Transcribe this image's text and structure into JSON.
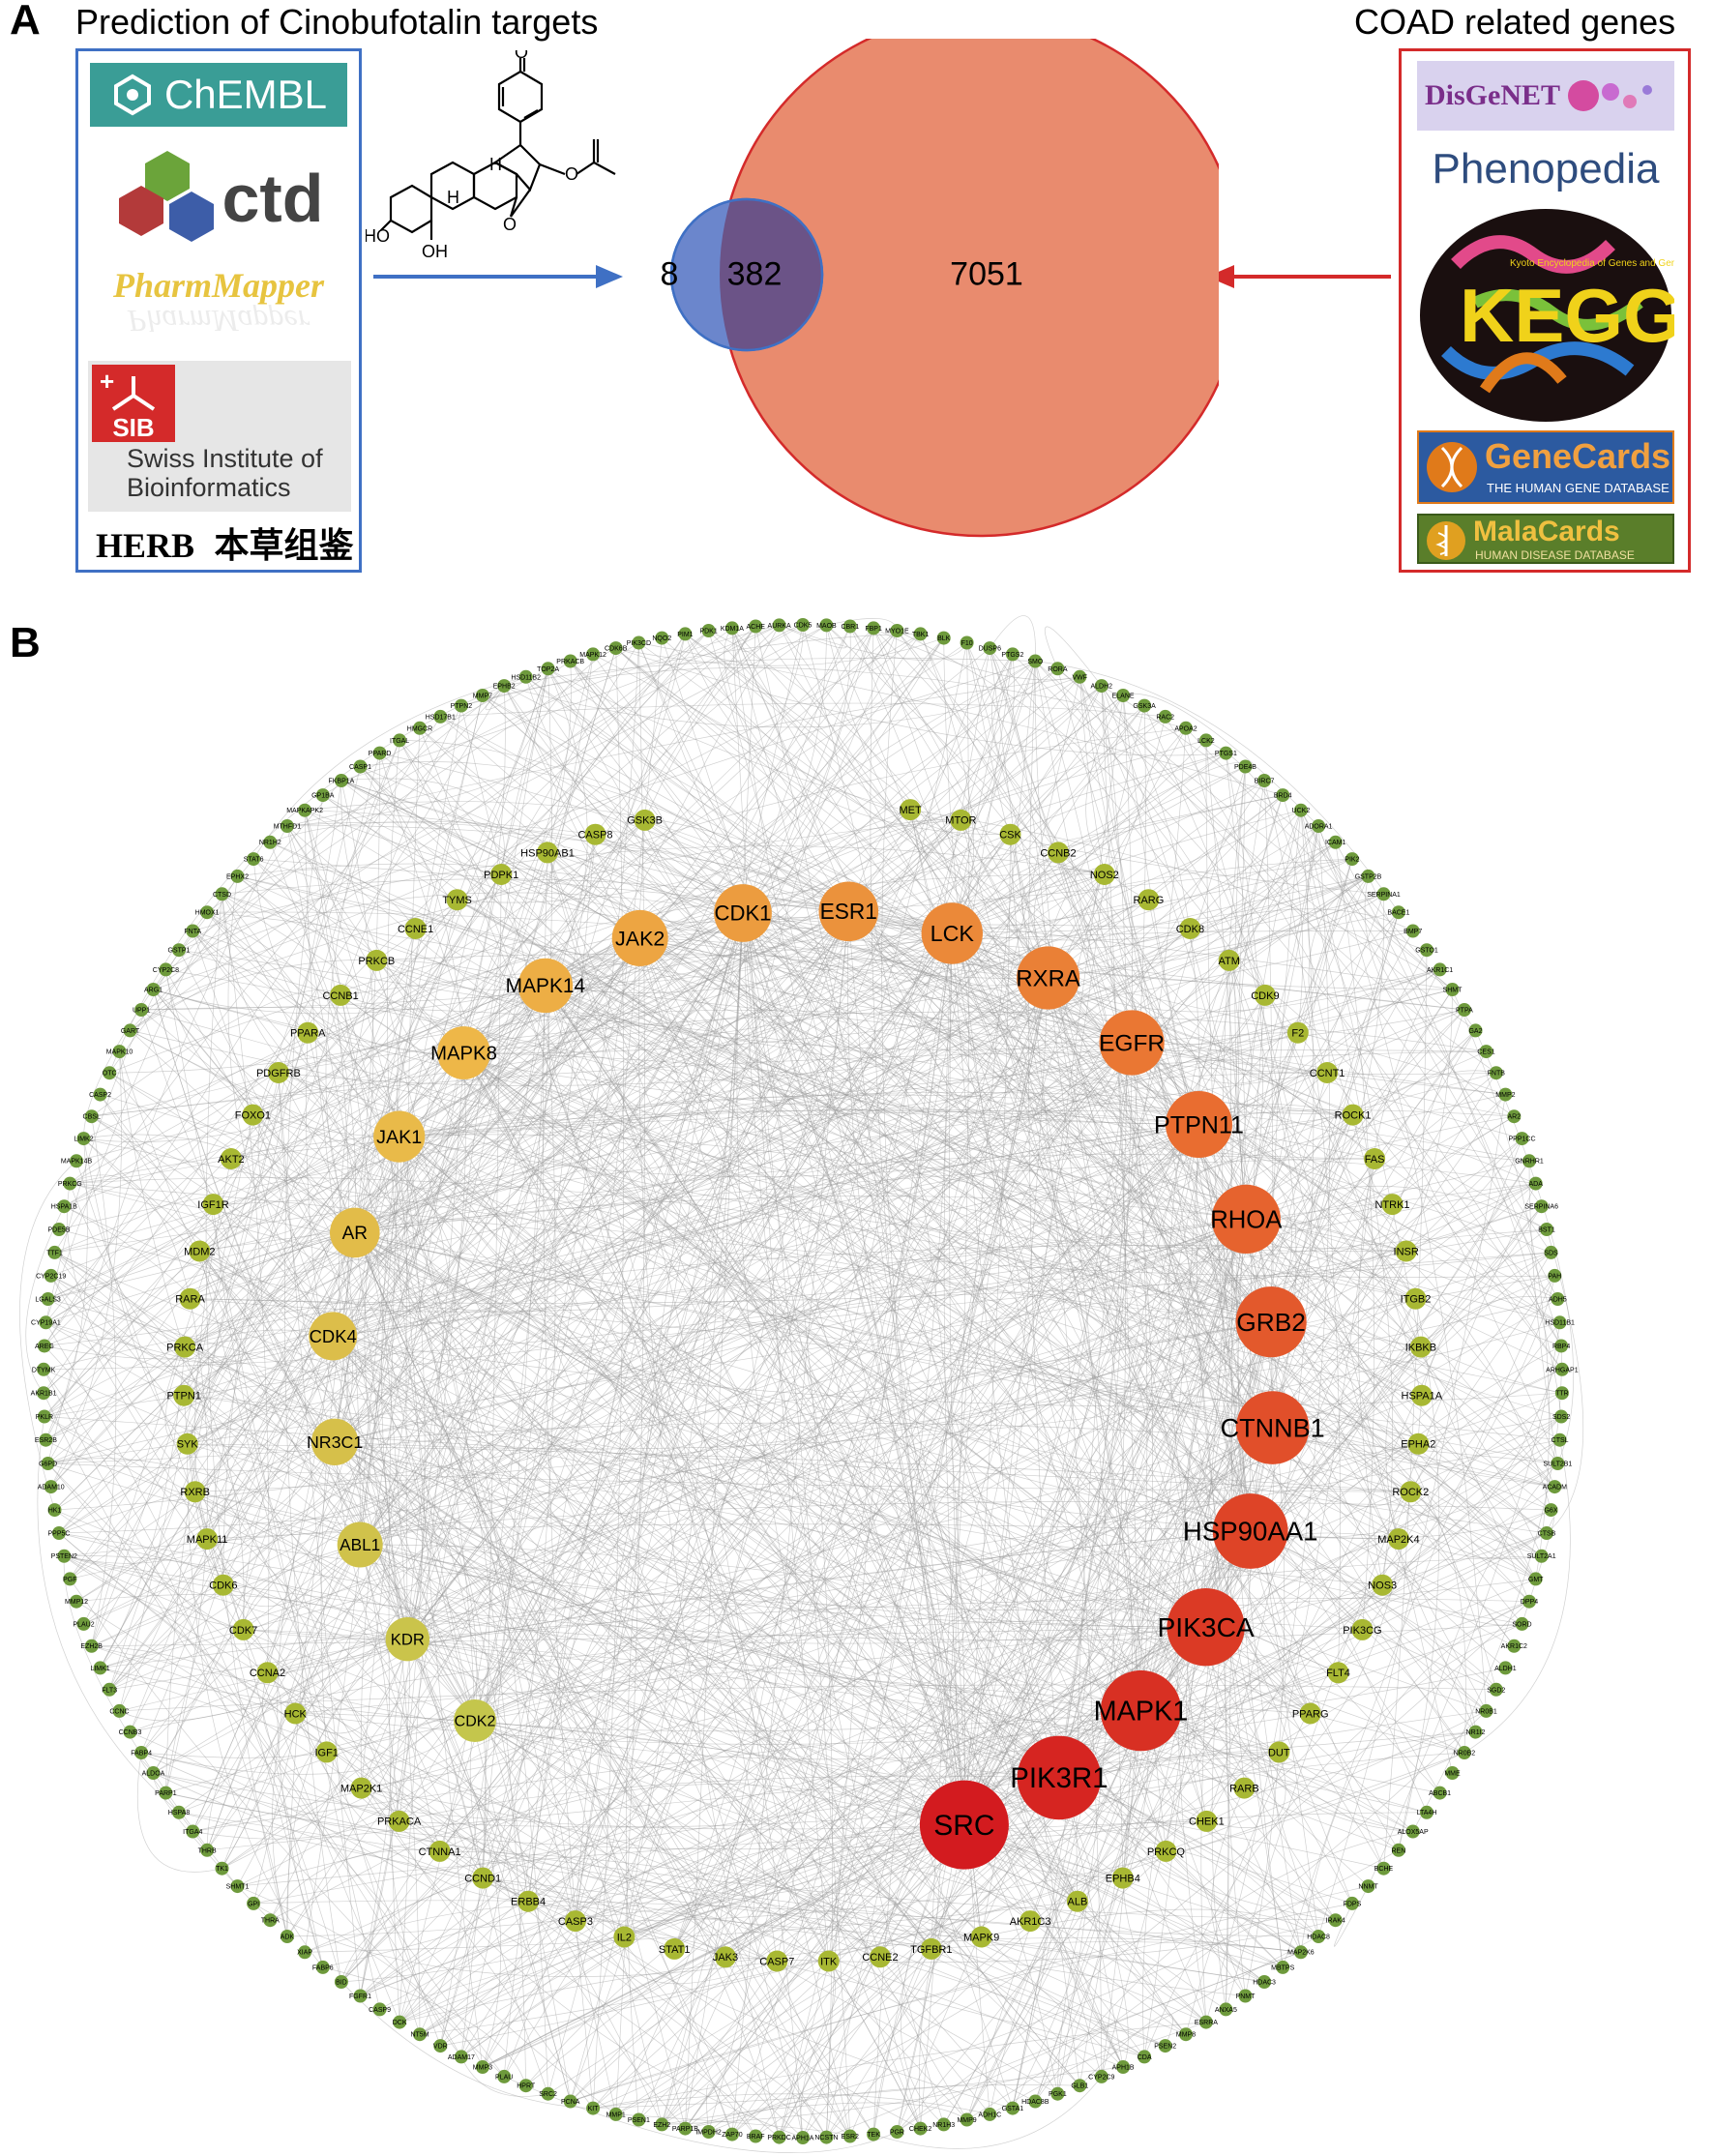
{
  "panel_a": {
    "letter": "A",
    "left_title": "Prediction of Cinobufotalin targets",
    "right_title": "COAD related genes",
    "left_logos": {
      "chembl": "ChEMBL",
      "ctd": "ctd",
      "pharmmapper": "PharmMapper",
      "sib_badge": "SIB",
      "sib_line1": "Swiss Institute of",
      "sib_line2": "Bioinformatics",
      "herb": "HERB",
      "herb_cn": "本草组鉴"
    },
    "right_logos": {
      "disgenet": "DisGeNET",
      "phenopedia": "Phenopedia",
      "kegg_letters": "KEGG",
      "kegg_tagline": "Kyoto Encyclopedia of Genes and Genomes",
      "genecards": "GeneCards",
      "genecards_tag": "THE HUMAN GENE DATABASE",
      "malacards": "MalaCards",
      "malacards_tag": "HUMAN DISEASE DATABASE"
    },
    "molecule_labels": {
      "h1": "H",
      "h2": "H",
      "ho": "HO",
      "oh": "OH",
      "o1": "O",
      "o2": "O",
      "o3": "O"
    },
    "venn": {
      "left_only": "8",
      "overlap": "382",
      "right_only": "7051",
      "left_color": "#6b86cc",
      "right_color": "#e98b6e",
      "overlap_color": "#6b5387"
    }
  },
  "panel_b": {
    "letter": "B",
    "inner_ring": [
      {
        "name": "SRC",
        "rank": 1
      },
      {
        "name": "PIK3R1",
        "rank": 2
      },
      {
        "name": "MAPK1",
        "rank": 3
      },
      {
        "name": "PIK3CA",
        "rank": 4
      },
      {
        "name": "HSP90AA1",
        "rank": 5
      },
      {
        "name": "CTNNB1",
        "rank": 6
      },
      {
        "name": "GRB2",
        "rank": 7
      },
      {
        "name": "RHOA",
        "rank": 8
      },
      {
        "name": "PTPN11",
        "rank": 9
      },
      {
        "name": "EGFR",
        "rank": 10
      },
      {
        "name": "RXRA",
        "rank": 11
      },
      {
        "name": "LCK",
        "rank": 12
      },
      {
        "name": "ESR1",
        "rank": 13
      },
      {
        "name": "CDK1",
        "rank": 14
      },
      {
        "name": "JAK2",
        "rank": 15
      },
      {
        "name": "MAPK14",
        "rank": 16
      },
      {
        "name": "MAPK8",
        "rank": 17
      },
      {
        "name": "JAK1",
        "rank": 18
      },
      {
        "name": "AR",
        "rank": 19
      },
      {
        "name": "CDK4",
        "rank": 20
      },
      {
        "name": "NR3C1",
        "rank": 21
      },
      {
        "name": "ABL1",
        "rank": 22
      },
      {
        "name": "KDR",
        "rank": 23
      },
      {
        "name": "CDK2",
        "rank": 24
      }
    ],
    "middle_ring": [
      "MET",
      "MTOR",
      "CSK",
      "CCNB2",
      "NOS2",
      "RARG",
      "CDK8",
      "ATM",
      "CDK9",
      "F2",
      "CCNT1",
      "ROCK1",
      "FAS",
      "NTRK1",
      "INSR",
      "ITGB2",
      "IKBKB",
      "HSPA1A",
      "EPHA2",
      "ROCK2",
      "MAP2K4",
      "NOS3",
      "PIK3CG",
      "FLT4",
      "PPARG",
      "DUT",
      "RARB",
      "CHEK1",
      "PRKCQ",
      "EPHB4",
      "ALB",
      "AKR1C3",
      "MAPK9",
      "TGFBR1",
      "CCNE2",
      "ITK",
      "CASP7",
      "JAK3",
      "STAT1",
      "IL2",
      "CASP3",
      "ERBB4",
      "CCND1",
      "CTNNA1",
      "PRKACA",
      "MAP2K1",
      "IGF1",
      "HCK",
      "CCNA2",
      "CDK7",
      "CDK6",
      "MAPK11",
      "RXRB",
      "SYK",
      "PTPN1",
      "PRKCA",
      "RARA",
      "MDM2",
      "IGF1R",
      "AKT2",
      "FOXO1",
      "PDGFRB",
      "PPARA",
      "CCNB1",
      "PRKCB",
      "CCNE1",
      "TYMS",
      "PDPK1",
      "HSP90AB1",
      "CASP8",
      "GSK3B"
    ],
    "outer_ring": [
      "CDK5",
      "MAOB",
      "CBR1",
      "FBP1",
      "MYO1E",
      "TBK1",
      "BLK",
      "F10",
      "DUSP6",
      "PTGS2",
      "SMO",
      "RORA",
      "VWF",
      "ALDH2",
      "ELANE",
      "GSK3A",
      "RAC2",
      "APOA2",
      "LCK2",
      "PTGS1",
      "PDE4B",
      "BIRC7",
      "BRD4",
      "UCK2",
      "ADORA1",
      "ICAM1",
      "PIK2",
      "GSTP2B",
      "SERPINA1",
      "BACE1",
      "BMP7",
      "GSTO1",
      "AKR1C1",
      "SHMT",
      "PTPA",
      "GA2",
      "CES1",
      "FNTB",
      "MMP2",
      "AR2",
      "PPP1CC",
      "GNRHR1",
      "ADA",
      "SERPINA6",
      "BST1",
      "SDS",
      "PAH",
      "ADH5",
      "HSD11B1",
      "RBP4",
      "ARHGAP1",
      "TTR",
      "SDS2",
      "CTSL",
      "SULT2B1",
      "ACADM",
      "G6X",
      "CTSB",
      "SULT2A1",
      "GMT",
      "DPP4",
      "SORD",
      "AKR1C2",
      "ALDH1",
      "SGD2",
      "NR0B1",
      "NR1I2",
      "NR0B2",
      "MME",
      "ABCB1",
      "LTA4H",
      "ALOX5AP",
      "REN",
      "BCHE",
      "NNMT",
      "FDPS",
      "IRAK4",
      "HDAC8",
      "MAP2K6",
      "MBTPS",
      "HDAC3",
      "PNMT",
      "ANXA5",
      "ESRRA",
      "MMP8",
      "PSEN2",
      "CDA",
      "APH1B",
      "CYP2C9",
      "GLB1",
      "PGK1",
      "HDAC8B",
      "GSTA1",
      "ADH1C",
      "MMP9",
      "NR1H3",
      "CHEK2",
      "PGR",
      "TEK",
      "ESR2",
      "NCSTN",
      "APH1A",
      "PRKDC",
      "BRAF",
      "ZAP70",
      "IMPDH2",
      "PARP1B",
      "EZH2",
      "PSEN1",
      "MMP1",
      "KIT",
      "PCNA",
      "SRC2",
      "HPRT",
      "PLAU",
      "MMP3",
      "ADAM17",
      "VDR",
      "NT5M",
      "DCK",
      "CASP9",
      "FGFR1",
      "BID",
      "FABP6",
      "XIAP",
      "ADK",
      "THRA",
      "GPI",
      "SHMT1",
      "TK1",
      "THRB",
      "ITGA4",
      "HSPA8",
      "PARP1",
      "ALDOA",
      "FABP4",
      "CCNB3",
      "CCNC",
      "FLT3",
      "LIMK1",
      "EZH2B",
      "PLAU2",
      "MMP12",
      "PGF",
      "PSTEN2",
      "PPP5C",
      "HK1",
      "ADAM10",
      "G6PD",
      "ESR2B",
      "PKLR",
      "AKR1B1",
      "DTYMK",
      "AREG",
      "CYP19A1",
      "LGALS3",
      "CYP2C19",
      "TTF1",
      "PDE5B",
      "HSPA1B",
      "PRKCG",
      "MAPK14B",
      "LIMK2",
      "CBSL",
      "CASP2",
      "OTC",
      "MAPK10",
      "GART",
      "UPP1",
      "ARG1",
      "CYP2C8",
      "GSTP1",
      "FNTA",
      "HMOX1",
      "CTSD",
      "EPHX2",
      "STAT6",
      "NR1H2",
      "MTHFD1",
      "MAPKAPK2",
      "GP1BA",
      "FKBP1A",
      "CASP1",
      "PPARD",
      "ITGAL",
      "HMGCR",
      "HSD17B1",
      "PTPN2",
      "MMP7",
      "EPHB2",
      "HSD11B2",
      "TOP2A",
      "PRKACB",
      "MAPK12",
      "CDK6B",
      "PIK3CD",
      "NQO2",
      "PIM1",
      "PDK1",
      "KDM1A",
      "ACHE",
      "AURKA"
    ],
    "colors": {
      "edge": "#9a9a9a",
      "peripheral_node": "#6e9a3c",
      "ring2_node": "#a8b833",
      "label": "#000000"
    }
  }
}
